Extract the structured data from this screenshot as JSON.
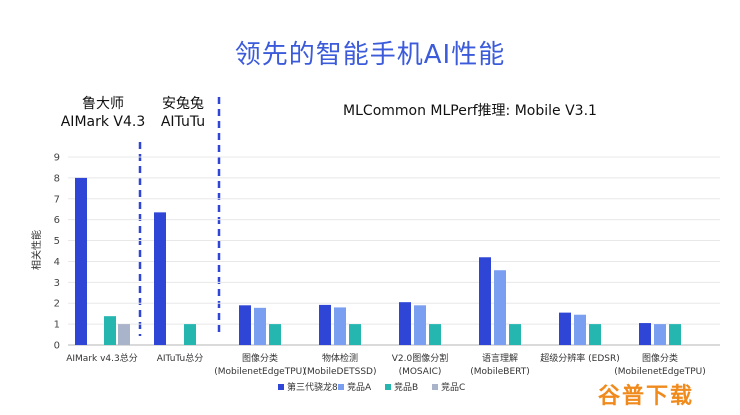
{
  "chart_data": {
    "type": "bar",
    "title": "领先的智能手机AI性能",
    "ylabel": "相关性能",
    "xlabel": "",
    "ylim": [
      0,
      9
    ],
    "yticks": [
      0,
      1,
      2,
      3,
      4,
      5,
      6,
      7,
      8,
      9
    ],
    "group_headers": [
      {
        "lines": [
          "鲁大师",
          "AIMark V4.3"
        ]
      },
      {
        "lines": [
          "安兔兔",
          "AITuTu"
        ]
      },
      {
        "lines": [
          "MLCommon MLPerf推理: Mobile V3.1"
        ]
      }
    ],
    "categories": [
      [
        "AIMark v4.3总分"
      ],
      [
        "AITuTu总分"
      ],
      [
        "图像分类",
        "(MobilenetEdgeTPU)"
      ],
      [
        "物体检测",
        "(MobileDETSSD)"
      ],
      [
        "V2.0图像分割",
        "(MOSAIC)"
      ],
      [
        "语言理解",
        "(MobileBERT)"
      ],
      [
        "超级分辨率 (EDSR)"
      ],
      [
        "图像分类",
        "(MobilenetEdgeTPU)"
      ]
    ],
    "series": [
      {
        "name": "第三代骁龙8",
        "color": "#2f45d6",
        "values": [
          8.0,
          6.35,
          1.9,
          1.92,
          2.05,
          4.2,
          1.55,
          1.05
        ]
      },
      {
        "name": "竞品A",
        "color": "#7b9ff0",
        "values": [
          null,
          null,
          1.78,
          1.8,
          1.9,
          3.58,
          1.45,
          1.0
        ]
      },
      {
        "name": "竞品B",
        "color": "#26b6b0",
        "values": [
          1.38,
          1.0,
          1.0,
          1.0,
          1.0,
          1.0,
          1.0,
          1.0
        ]
      },
      {
        "name": "竞品C",
        "color": "#a9b3c9",
        "values": [
          1.0,
          null,
          null,
          null,
          null,
          null,
          null,
          null
        ]
      }
    ]
  },
  "watermark": "谷普下载"
}
